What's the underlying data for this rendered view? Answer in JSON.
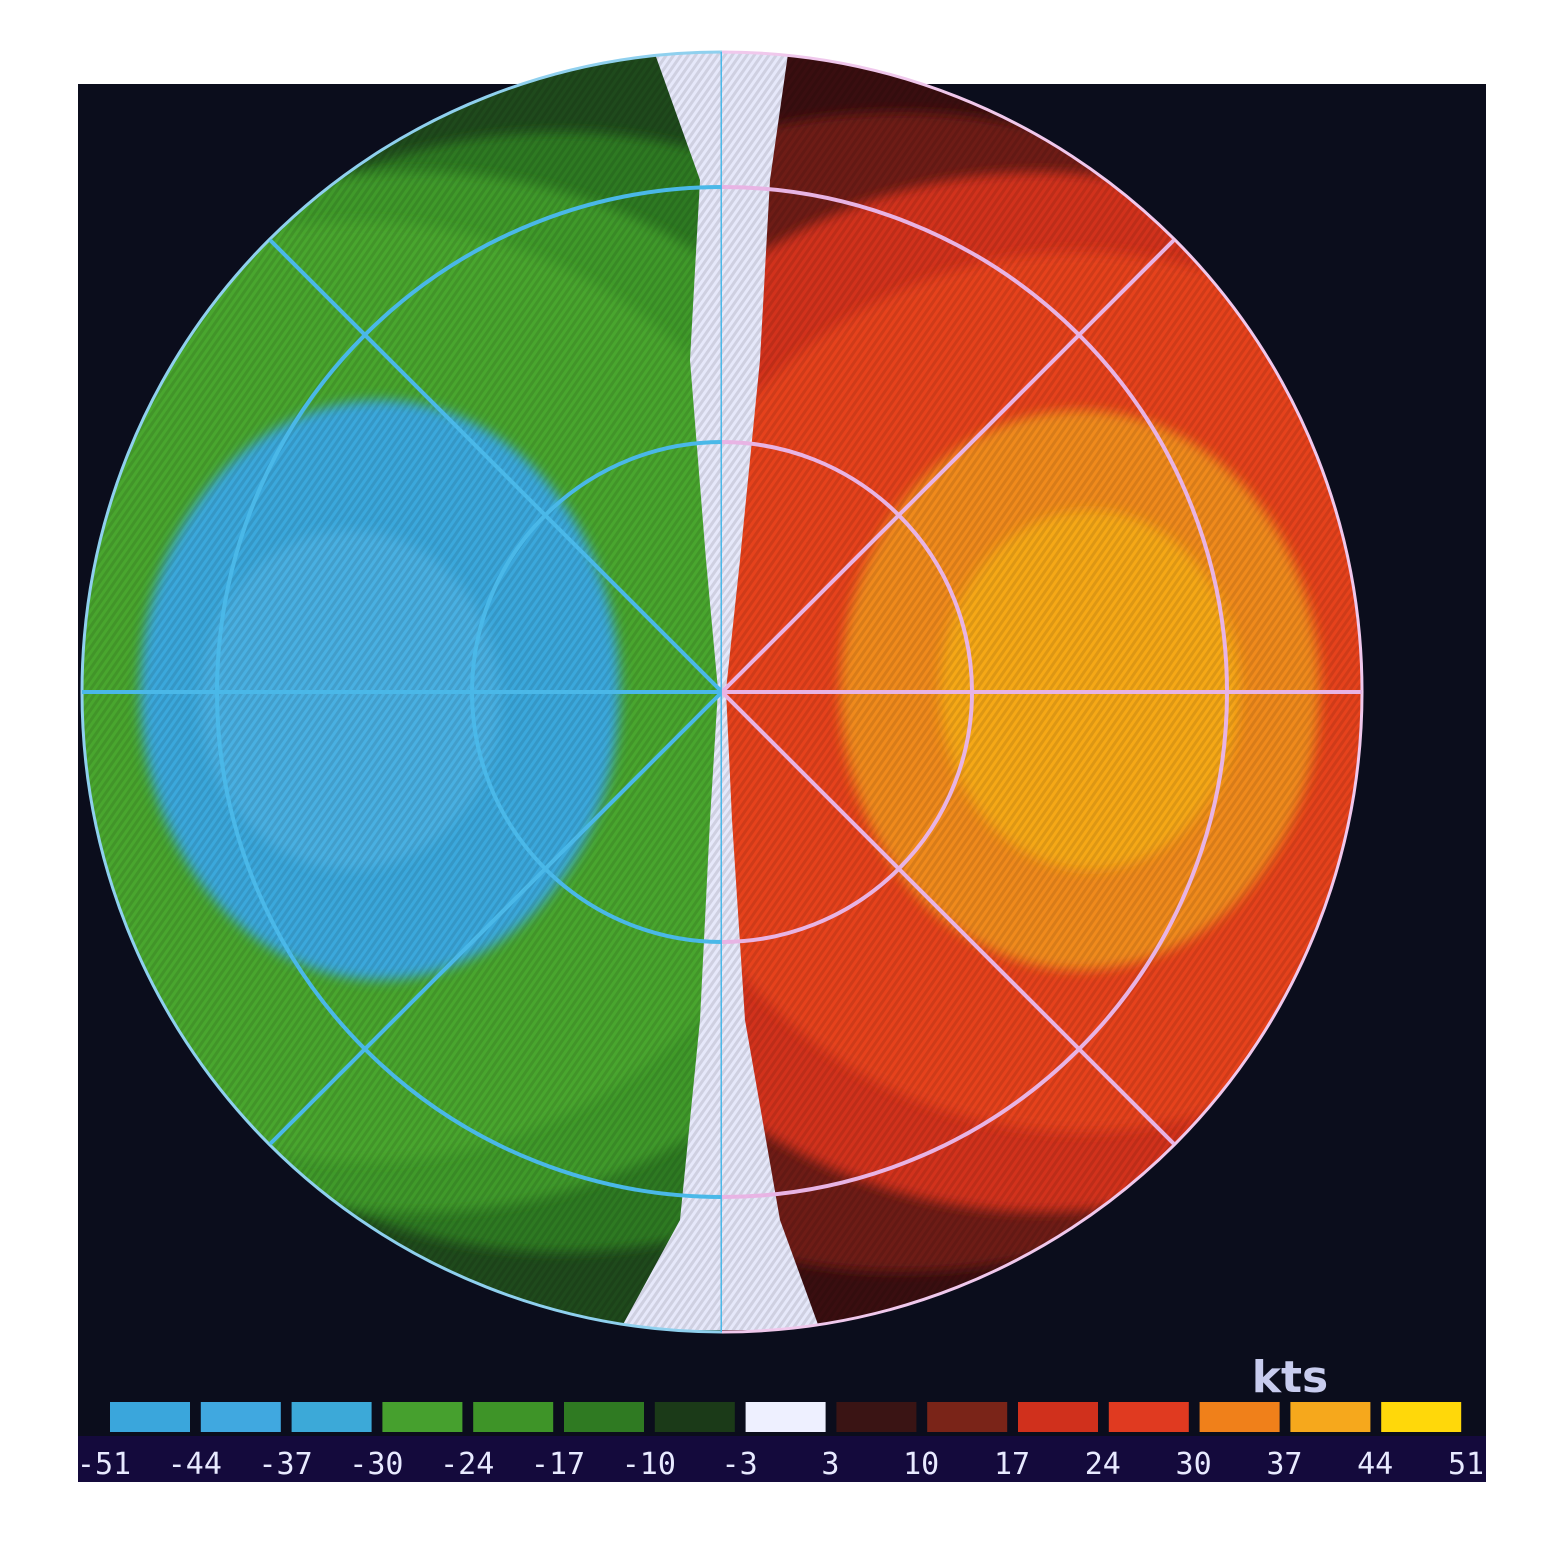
{
  "display": {
    "units_label": "kts",
    "background_color": "#0b0d1c",
    "colorbar_strip_color": "#140a3c"
  },
  "colorbar": {
    "bins": [
      {
        "label": "-51",
        "color": "#3aa6dc"
      },
      {
        "label": "-44",
        "color": "#40a8e0"
      },
      {
        "label": "-37",
        "color": "#3ca9d8"
      },
      {
        "label": "-30",
        "color": "#46a02e"
      },
      {
        "label": "-24",
        "color": "#3e9428"
      },
      {
        "label": "-17",
        "color": "#2f7a22"
      },
      {
        "label": "-10",
        "color": "#1b3a18"
      },
      {
        "label": "-3",
        "color": "#eef0ff"
      },
      {
        "label": "3",
        "color": "#3a1414"
      },
      {
        "label": "10",
        "color": "#7a2418"
      },
      {
        "label": "17",
        "color": "#d0301c"
      },
      {
        "label": "24",
        "color": "#e03a20"
      },
      {
        "label": "30",
        "color": "#f0801a"
      },
      {
        "label": "37",
        "color": "#f6a81c"
      },
      {
        "label": "44",
        "color": "#ffd80a"
      },
      {
        "label": "51",
        "color": ""
      }
    ]
  },
  "radar": {
    "approaching_ring_color": "#4ab8e8",
    "receding_ring_color": "#e8b4e4",
    "velocity_colors": {
      "green_dark": "#1f4a1c",
      "green_mid": "#2e7a22",
      "green": "#3f9a2a",
      "green_light": "#4aa62e",
      "blue": "#3aa8dc",
      "blue_light": "#48b0e2",
      "zero_band": "#e6e8fa",
      "red_dark": "#3a0e10",
      "red_maroon": "#6e1a14",
      "red": "#d2301e",
      "red_light": "#e6421f",
      "orange": "#f08a1a",
      "amber": "#f6a818"
    }
  }
}
